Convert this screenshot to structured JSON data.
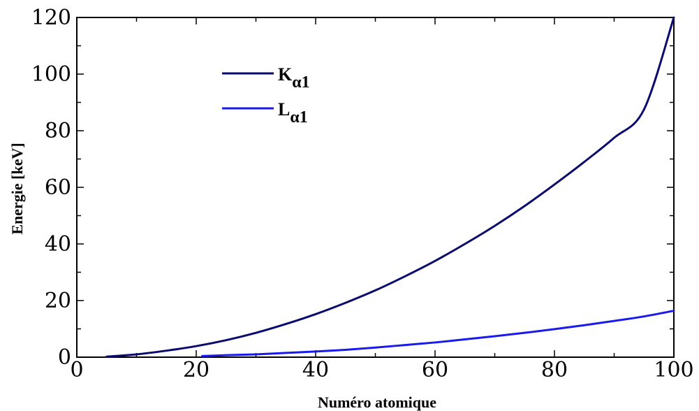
{
  "chart_data": {
    "type": "line",
    "xlabel": "Numéro atomique",
    "ylabel": "Energie [keV]",
    "xlim": [
      0,
      100
    ],
    "ylim": [
      0,
      120
    ],
    "x_ticks": [
      0,
      20,
      40,
      60,
      80,
      100
    ],
    "y_ticks": [
      0,
      20,
      40,
      60,
      80,
      100,
      120
    ],
    "grid": false,
    "legend_position": "top-left",
    "series": [
      {
        "name": "Kα1",
        "label_main": "K",
        "label_sub": "α1",
        "color": "#0a0a6e",
        "x": [
          5,
          10,
          15,
          20,
          25,
          30,
          35,
          40,
          45,
          50,
          55,
          60,
          65,
          70,
          75,
          80,
          85,
          90,
          95,
          100
        ],
        "y": [
          0.2,
          1.0,
          2.3,
          3.9,
          6.0,
          8.6,
          11.7,
          15.2,
          19.2,
          23.6,
          28.6,
          34.0,
          40.0,
          46.4,
          53.4,
          61.0,
          69.0,
          77.5,
          87.5,
          120.0
        ]
      },
      {
        "name": "Lα1",
        "label_main": "L",
        "label_sub": "α1",
        "color": "#1a1aee",
        "x": [
          21,
          25,
          30,
          35,
          40,
          45,
          50,
          55,
          60,
          65,
          70,
          75,
          80,
          85,
          90,
          95,
          100
        ],
        "y": [
          0.4,
          0.7,
          1.0,
          1.5,
          2.0,
          2.6,
          3.4,
          4.3,
          5.2,
          6.3,
          7.4,
          8.6,
          9.9,
          11.3,
          12.8,
          14.4,
          16.4
        ]
      }
    ]
  }
}
